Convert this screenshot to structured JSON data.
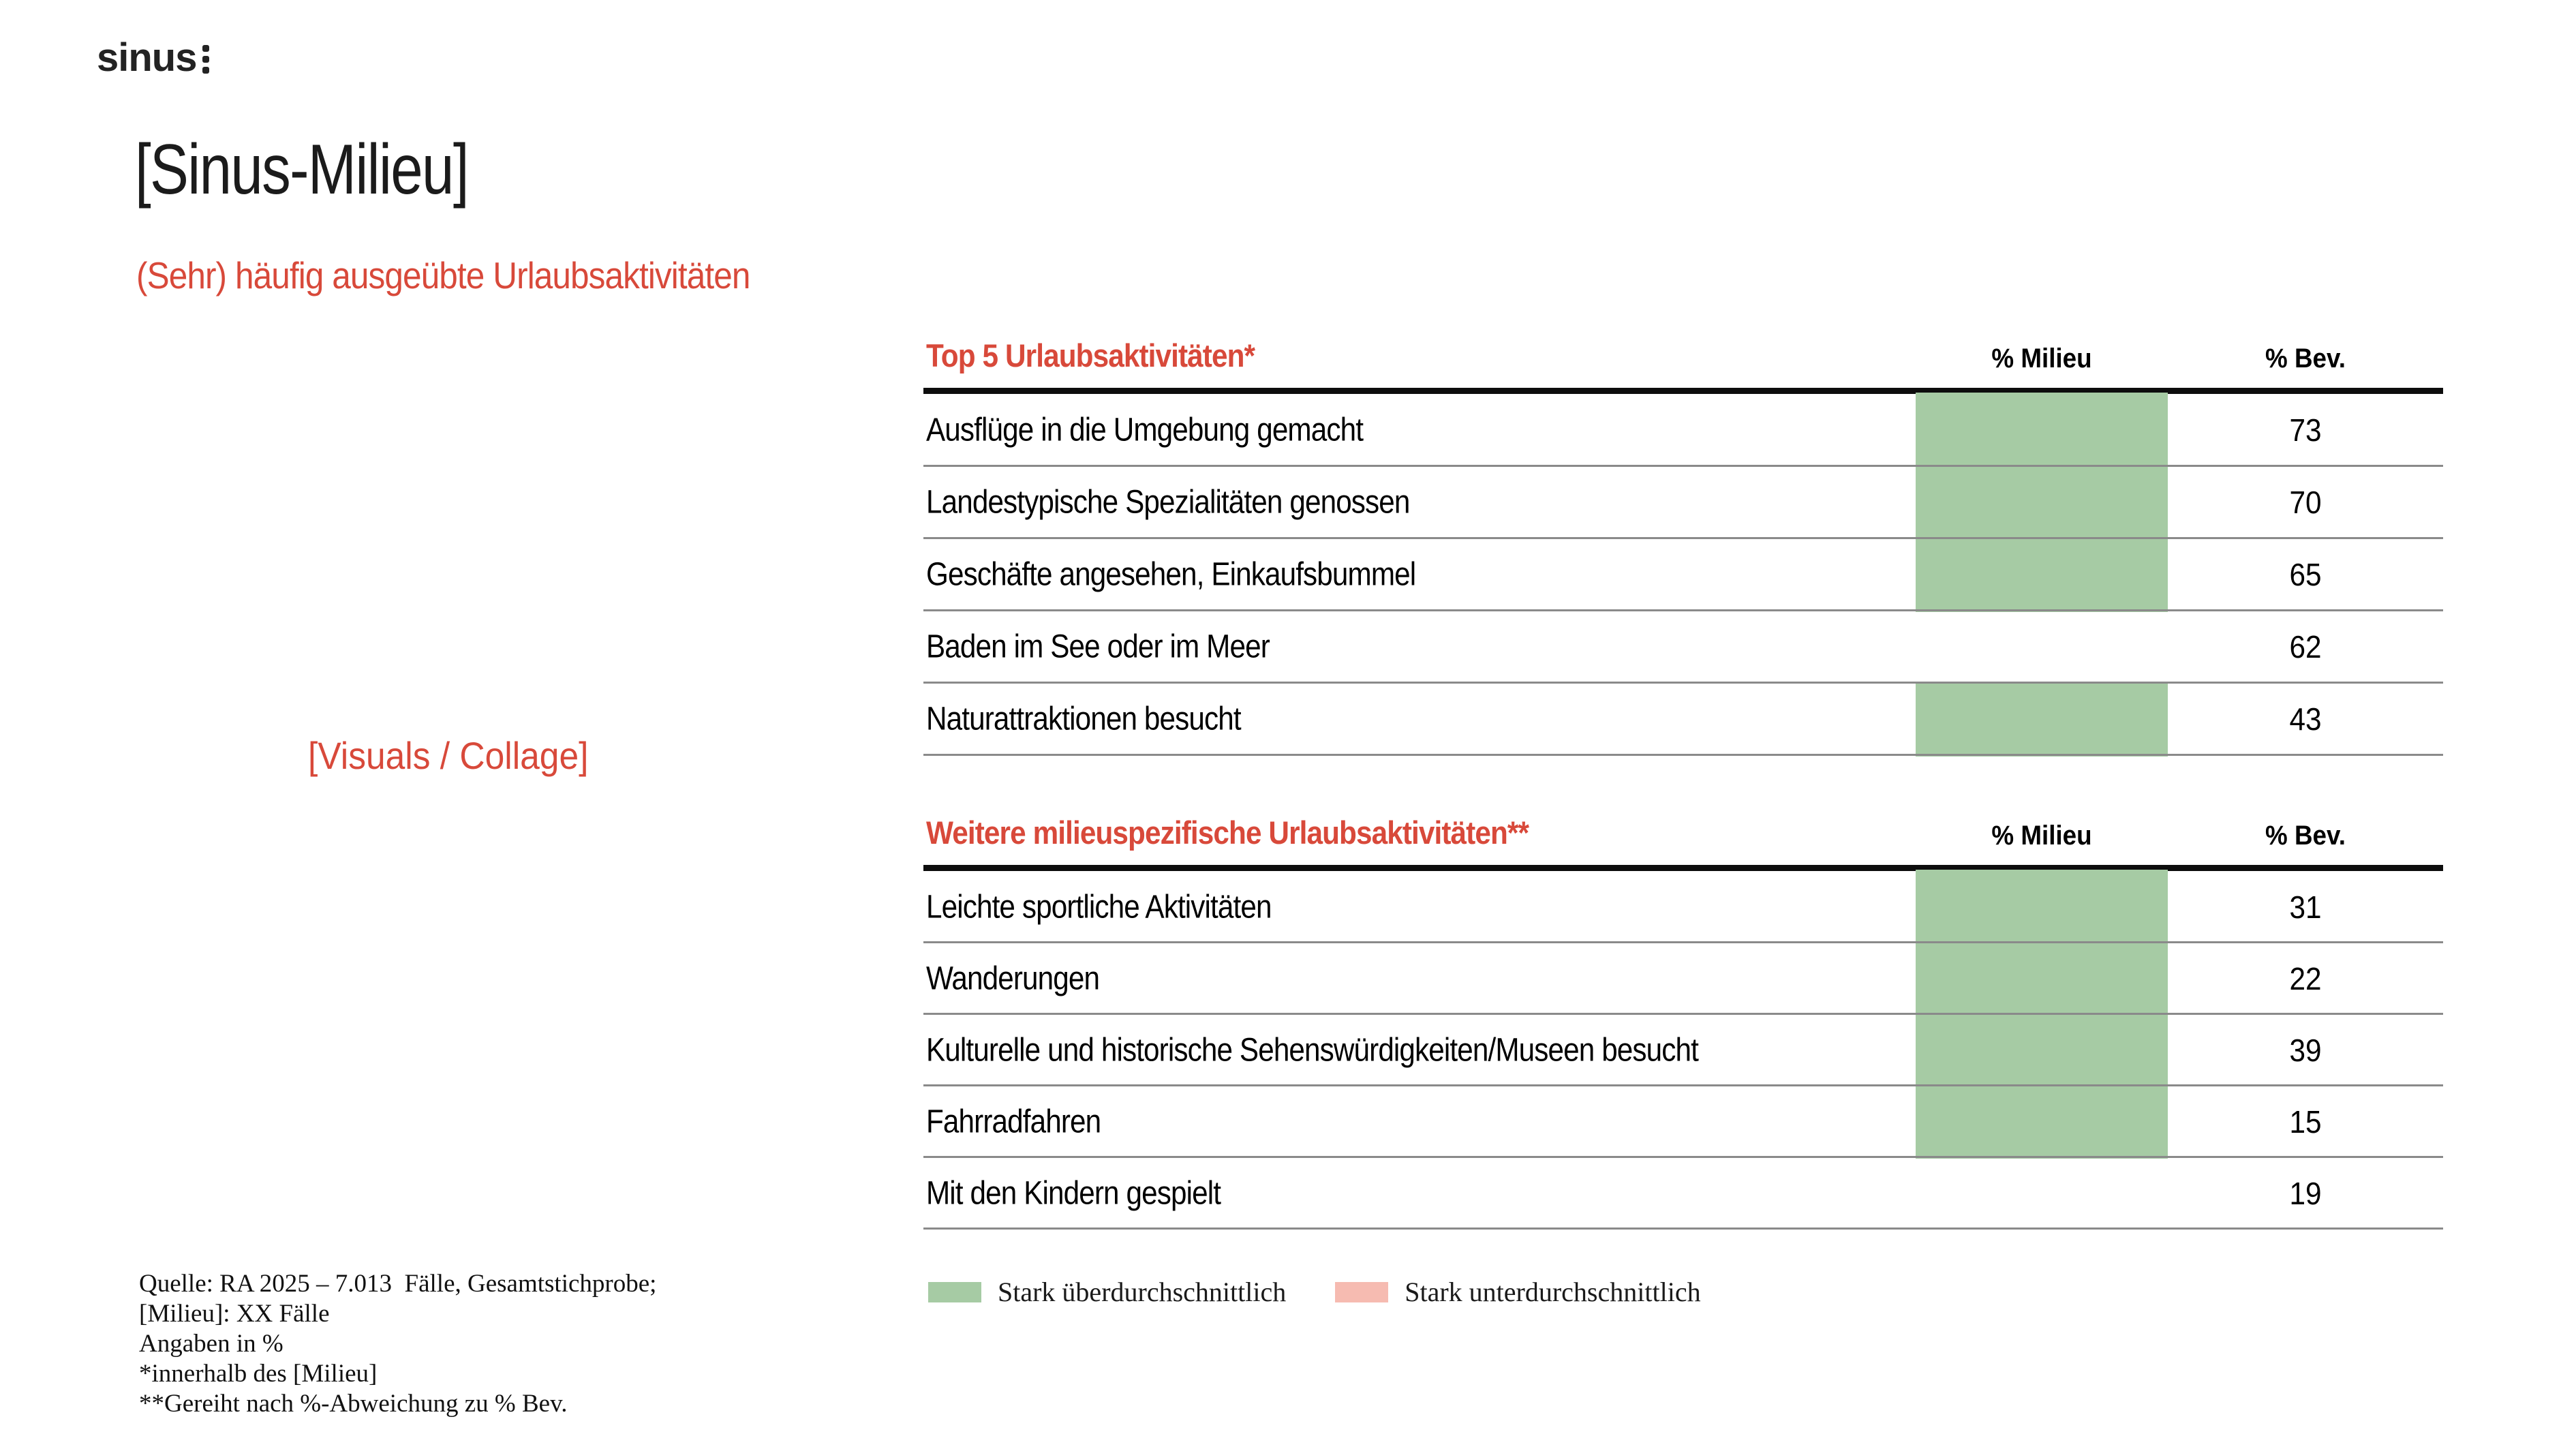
{
  "slide": {
    "logo_text": "sinus",
    "title": "[Sinus-Milieu]",
    "subtitle": "(Sehr) häufig ausgeübte Urlaubsaktivitäten",
    "visuals_placeholder": "[Visuals / Collage]"
  },
  "tables": [
    {
      "title": "Top 5 Urlaubsaktivitäten*",
      "col_milieu": "% Milieu",
      "col_bev": "% Bev.",
      "rows": [
        {
          "label": "Ausflüge in die Umgebung gemacht",
          "bev": 73,
          "milieu_above_average": true
        },
        {
          "label": "Landestypische Spezialitäten genossen",
          "bev": 70,
          "milieu_above_average": true
        },
        {
          "label": "Geschäfte angesehen, Einkaufsbummel",
          "bev": 65,
          "milieu_above_average": true
        },
        {
          "label": "Baden im See oder im Meer",
          "bev": 62,
          "milieu_above_average": false
        },
        {
          "label": "Naturattraktionen besucht",
          "bev": 43,
          "milieu_above_average": true
        }
      ]
    },
    {
      "title": "Weitere milieuspezifische Urlaubsaktivitäten**",
      "col_milieu": "% Milieu",
      "col_bev": "% Bev.",
      "rows": [
        {
          "label": "Leichte sportliche Aktivitäten",
          "bev": 31,
          "milieu_above_average": true
        },
        {
          "label": "Wanderungen",
          "bev": 22,
          "milieu_above_average": true
        },
        {
          "label": "Kulturelle und historische Sehenswürdigkeiten/Museen besucht",
          "bev": 39,
          "milieu_above_average": true
        },
        {
          "label": "Fahrradfahren",
          "bev": 15,
          "milieu_above_average": true
        },
        {
          "label": "Mit den Kindern gespielt",
          "bev": 19,
          "milieu_above_average": false
        }
      ]
    }
  ],
  "legend": [
    {
      "label": "Stark überdurchschnittlich",
      "swatch": "above-average"
    },
    {
      "label": "Stark unterdurchschnittlich",
      "swatch": "below-average"
    }
  ],
  "footnotes": [
    "Quelle: RA 2025 – 7.013  Fälle, Gesamtstichprobe;",
    "[Milieu]: XX Fälle",
    "Angaben in %",
    "*innerhalb des [Milieu]",
    "**Gereiht nach %-Abweichung zu % Bev."
  ],
  "colors": {
    "accent_red": "#D8493A",
    "above_average_green": "#A6CBA4",
    "below_average_pink": "#F6BBB1"
  }
}
